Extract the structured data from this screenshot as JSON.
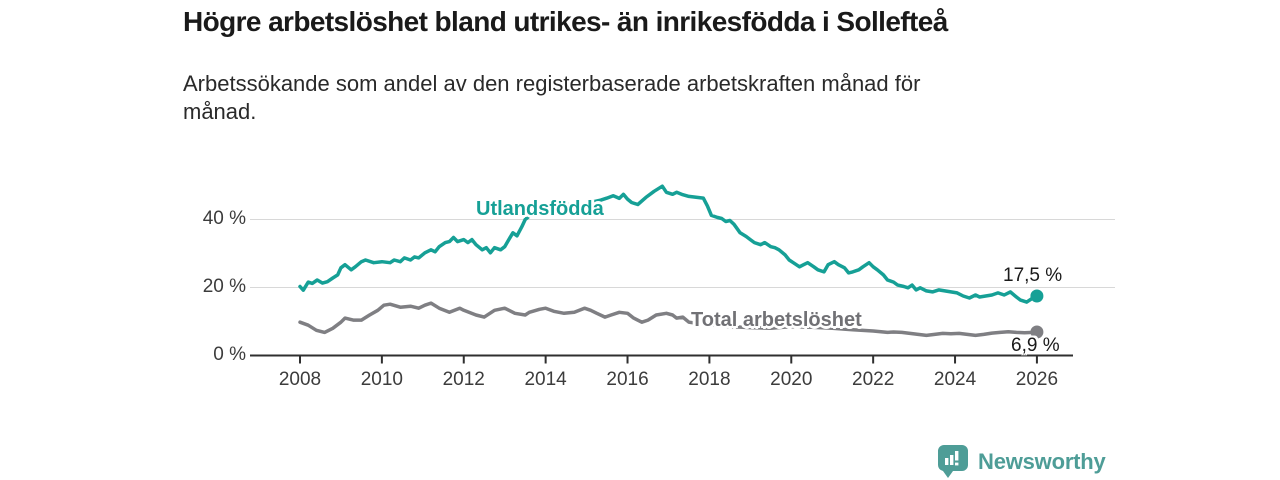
{
  "header": {
    "title": "Högre arbetslöshet bland utrikes- än inrikesfödda i Sollefteå",
    "subtitle": "Arbetssökande som andel av den registerbaserade arbetskraften månad för\nmånad."
  },
  "chart_data": {
    "type": "line",
    "title": "Högre arbetslöshet bland utrikes- än inrikesfödda i Sollefteå",
    "xlabel": "",
    "ylabel": "Arbetssökande som andel av den registerbaserade arbetskraften",
    "unit": "%",
    "grid": "horizontal",
    "x_range": [
      2008,
      2026
    ],
    "ylim": [
      0,
      50
    ],
    "x_ticks": [
      2008,
      2010,
      2012,
      2014,
      2016,
      2018,
      2020,
      2022,
      2024,
      2026
    ],
    "y_ticks": [
      {
        "label": "0 %",
        "value": 0
      },
      {
        "label": "20 %",
        "value": 20
      },
      {
        "label": "40 %",
        "value": 40
      }
    ],
    "series": [
      {
        "name": "Total arbetslöshet",
        "color": "#7f7f83",
        "end_label": "6,9 %",
        "end_value": 6.9,
        "points": [
          [
            2008.0,
            9.8
          ],
          [
            2008.2,
            8.9
          ],
          [
            2008.4,
            7.4
          ],
          [
            2008.6,
            6.8
          ],
          [
            2008.8,
            8.0
          ],
          [
            2009.0,
            9.8
          ],
          [
            2009.1,
            11.0
          ],
          [
            2009.3,
            10.4
          ],
          [
            2009.5,
            10.4
          ],
          [
            2009.7,
            11.9
          ],
          [
            2009.9,
            13.3
          ],
          [
            2010.05,
            14.8
          ],
          [
            2010.2,
            15.1
          ],
          [
            2010.45,
            14.2
          ],
          [
            2010.7,
            14.5
          ],
          [
            2010.9,
            13.9
          ],
          [
            2011.05,
            14.8
          ],
          [
            2011.2,
            15.4
          ],
          [
            2011.4,
            13.9
          ],
          [
            2011.65,
            12.7
          ],
          [
            2011.9,
            13.9
          ],
          [
            2012.0,
            13.3
          ],
          [
            2012.3,
            11.9
          ],
          [
            2012.5,
            11.3
          ],
          [
            2012.75,
            13.3
          ],
          [
            2013.0,
            13.9
          ],
          [
            2013.25,
            12.4
          ],
          [
            2013.5,
            11.9
          ],
          [
            2013.6,
            12.7
          ],
          [
            2013.85,
            13.6
          ],
          [
            2014.0,
            13.9
          ],
          [
            2014.2,
            13.0
          ],
          [
            2014.45,
            12.4
          ],
          [
            2014.7,
            12.7
          ],
          [
            2014.95,
            13.9
          ],
          [
            2015.1,
            13.3
          ],
          [
            2015.25,
            12.4
          ],
          [
            2015.45,
            11.3
          ],
          [
            2015.6,
            11.9
          ],
          [
            2015.8,
            12.7
          ],
          [
            2016.0,
            12.4
          ],
          [
            2016.15,
            11.0
          ],
          [
            2016.35,
            9.8
          ],
          [
            2016.5,
            10.4
          ],
          [
            2016.7,
            11.9
          ],
          [
            2016.95,
            12.4
          ],
          [
            2017.1,
            11.9
          ],
          [
            2017.2,
            11.0
          ],
          [
            2017.35,
            11.3
          ],
          [
            2017.5,
            9.8
          ],
          [
            2017.8,
            9.3
          ],
          [
            2018.0,
            9.0
          ],
          [
            2018.5,
            8.5
          ],
          [
            2019.0,
            8.2
          ],
          [
            2019.5,
            8.0
          ],
          [
            2020.0,
            8.5
          ],
          [
            2020.5,
            8.3
          ],
          [
            2021.0,
            8.0
          ],
          [
            2021.5,
            7.6
          ],
          [
            2022.0,
            7.2
          ],
          [
            2022.35,
            6.8
          ],
          [
            2022.5,
            6.9
          ],
          [
            2022.7,
            6.8
          ],
          [
            2022.9,
            6.5
          ],
          [
            2023.1,
            6.2
          ],
          [
            2023.3,
            5.9
          ],
          [
            2023.5,
            6.2
          ],
          [
            2023.7,
            6.5
          ],
          [
            2023.9,
            6.4
          ],
          [
            2024.1,
            6.5
          ],
          [
            2024.3,
            6.2
          ],
          [
            2024.5,
            5.9
          ],
          [
            2024.7,
            6.2
          ],
          [
            2024.9,
            6.6
          ],
          [
            2025.1,
            6.8
          ],
          [
            2025.3,
            7.0
          ],
          [
            2025.5,
            6.8
          ],
          [
            2025.7,
            6.7
          ],
          [
            2025.9,
            6.8
          ],
          [
            2026.0,
            6.9
          ]
        ]
      },
      {
        "name": "Utlandsfödda",
        "color": "#16a096",
        "end_label": "17,5 %",
        "end_value": 17.5,
        "points": [
          [
            2008.0,
            20.3
          ],
          [
            2008.08,
            19.2
          ],
          [
            2008.2,
            21.6
          ],
          [
            2008.3,
            21.2
          ],
          [
            2008.42,
            22.2
          ],
          [
            2008.55,
            21.3
          ],
          [
            2008.67,
            21.7
          ],
          [
            2008.8,
            22.8
          ],
          [
            2008.92,
            23.7
          ],
          [
            2009.0,
            25.8
          ],
          [
            2009.1,
            26.7
          ],
          [
            2009.25,
            25.2
          ],
          [
            2009.35,
            26.1
          ],
          [
            2009.5,
            27.6
          ],
          [
            2009.6,
            28.1
          ],
          [
            2009.8,
            27.3
          ],
          [
            2010.0,
            27.6
          ],
          [
            2010.2,
            27.3
          ],
          [
            2010.3,
            28.1
          ],
          [
            2010.45,
            27.6
          ],
          [
            2010.55,
            28.7
          ],
          [
            2010.7,
            28.1
          ],
          [
            2010.8,
            29.0
          ],
          [
            2010.9,
            28.7
          ],
          [
            2011.05,
            30.2
          ],
          [
            2011.2,
            31.1
          ],
          [
            2011.3,
            30.5
          ],
          [
            2011.4,
            32.0
          ],
          [
            2011.55,
            33.2
          ],
          [
            2011.65,
            33.5
          ],
          [
            2011.75,
            34.7
          ],
          [
            2011.85,
            33.5
          ],
          [
            2012.0,
            34.1
          ],
          [
            2012.1,
            33.2
          ],
          [
            2012.2,
            34.1
          ],
          [
            2012.3,
            32.6
          ],
          [
            2012.45,
            31.1
          ],
          [
            2012.55,
            31.7
          ],
          [
            2012.65,
            30.2
          ],
          [
            2012.75,
            31.7
          ],
          [
            2012.9,
            31.1
          ],
          [
            2013.0,
            32.0
          ],
          [
            2013.1,
            34.1
          ],
          [
            2013.2,
            36.1
          ],
          [
            2013.3,
            35.2
          ],
          [
            2013.42,
            37.9
          ],
          [
            2013.5,
            40.0
          ],
          [
            2013.6,
            41.0
          ],
          [
            2013.75,
            42.0
          ],
          [
            2013.9,
            43.0
          ],
          [
            2014.1,
            43.5
          ],
          [
            2014.25,
            43.0
          ],
          [
            2014.4,
            44.0
          ],
          [
            2014.6,
            44.5
          ],
          [
            2014.75,
            43.8
          ],
          [
            2014.9,
            44.3
          ],
          [
            2015.05,
            44.8
          ],
          [
            2015.2,
            45.3
          ],
          [
            2015.35,
            45.7
          ],
          [
            2015.5,
            46.3
          ],
          [
            2015.65,
            47.0
          ],
          [
            2015.8,
            46.2
          ],
          [
            2015.9,
            47.4
          ],
          [
            2016.0,
            46.0
          ],
          [
            2016.1,
            45.0
          ],
          [
            2016.25,
            44.4
          ],
          [
            2016.45,
            46.5
          ],
          [
            2016.65,
            48.3
          ],
          [
            2016.85,
            49.8
          ],
          [
            2016.95,
            48.0
          ],
          [
            2017.1,
            47.4
          ],
          [
            2017.2,
            48.0
          ],
          [
            2017.35,
            47.3
          ],
          [
            2017.5,
            46.8
          ],
          [
            2017.65,
            46.6
          ],
          [
            2017.85,
            46.3
          ],
          [
            2017.95,
            44.0
          ],
          [
            2018.05,
            41.2
          ],
          [
            2018.2,
            40.6
          ],
          [
            2018.3,
            40.3
          ],
          [
            2018.4,
            39.4
          ],
          [
            2018.5,
            39.7
          ],
          [
            2018.6,
            38.6
          ],
          [
            2018.75,
            36.1
          ],
          [
            2018.9,
            35.0
          ],
          [
            2019.0,
            34.1
          ],
          [
            2019.1,
            33.2
          ],
          [
            2019.25,
            32.6
          ],
          [
            2019.35,
            33.2
          ],
          [
            2019.5,
            32.0
          ],
          [
            2019.6,
            31.7
          ],
          [
            2019.7,
            31.1
          ],
          [
            2019.85,
            29.6
          ],
          [
            2019.95,
            28.1
          ],
          [
            2020.05,
            27.3
          ],
          [
            2020.2,
            26.1
          ],
          [
            2020.3,
            26.7
          ],
          [
            2020.4,
            27.3
          ],
          [
            2020.55,
            26.1
          ],
          [
            2020.65,
            25.2
          ],
          [
            2020.8,
            24.6
          ],
          [
            2020.9,
            26.7
          ],
          [
            2021.05,
            27.6
          ],
          [
            2021.15,
            26.7
          ],
          [
            2021.3,
            25.8
          ],
          [
            2021.4,
            24.3
          ],
          [
            2021.5,
            24.6
          ],
          [
            2021.65,
            25.2
          ],
          [
            2021.75,
            26.1
          ],
          [
            2021.9,
            27.3
          ],
          [
            2022.0,
            26.1
          ],
          [
            2022.1,
            25.2
          ],
          [
            2022.25,
            23.7
          ],
          [
            2022.35,
            22.2
          ],
          [
            2022.5,
            21.6
          ],
          [
            2022.6,
            20.7
          ],
          [
            2022.75,
            20.3
          ],
          [
            2022.85,
            19.9
          ],
          [
            2022.95,
            20.7
          ],
          [
            2023.05,
            19.3
          ],
          [
            2023.15,
            19.9
          ],
          [
            2023.3,
            19.0
          ],
          [
            2023.45,
            18.7
          ],
          [
            2023.6,
            19.3
          ],
          [
            2023.75,
            19.0
          ],
          [
            2023.9,
            18.7
          ],
          [
            2024.05,
            18.4
          ],
          [
            2024.2,
            17.5
          ],
          [
            2024.35,
            16.9
          ],
          [
            2024.5,
            17.8
          ],
          [
            2024.6,
            17.2
          ],
          [
            2024.75,
            17.5
          ],
          [
            2024.9,
            17.8
          ],
          [
            2025.05,
            18.4
          ],
          [
            2025.2,
            17.8
          ],
          [
            2025.35,
            18.7
          ],
          [
            2025.5,
            17.2
          ],
          [
            2025.6,
            16.3
          ],
          [
            2025.75,
            15.7
          ],
          [
            2025.9,
            16.9
          ],
          [
            2026.0,
            17.5
          ]
        ]
      }
    ],
    "colors": {
      "grid": "#d8d8d8",
      "axis": "#2f2f2f",
      "tick_text": "#3c3c3c"
    }
  },
  "branding": {
    "logo_text": "Newsworthy",
    "logo_color": "#4e9d97",
    "logo_icon": "bar-chart-speech-bubble"
  }
}
